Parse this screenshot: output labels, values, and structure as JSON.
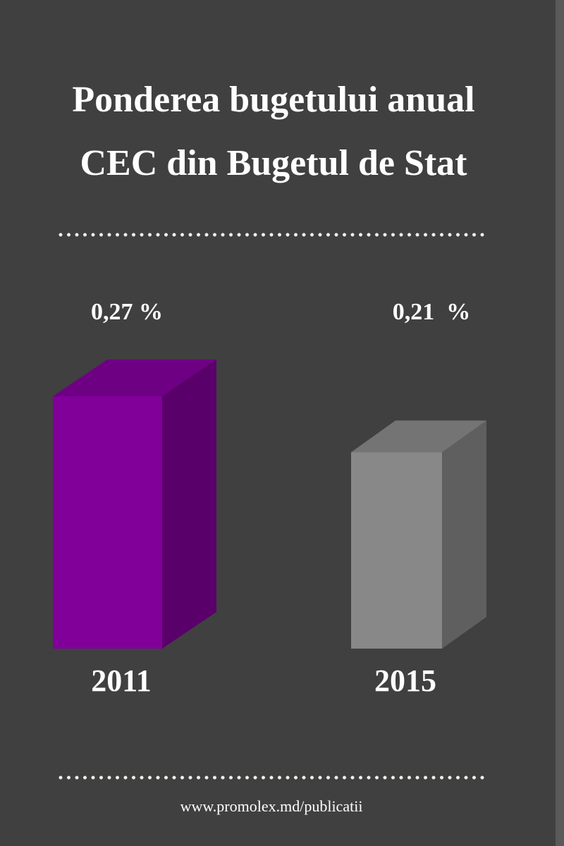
{
  "chart_data": {
    "type": "bar3d",
    "title_lines": [
      "Ponderea bugetului anual",
      "CEC din Bugetul de Stat"
    ],
    "categories": [
      "2011",
      "2015"
    ],
    "values": [
      0.27,
      0.21
    ],
    "value_labels": [
      "0,27 %",
      "0,21  %"
    ],
    "colors": [
      "#800099",
      "#888888"
    ],
    "source": "www.promolex.md/publicatii"
  }
}
